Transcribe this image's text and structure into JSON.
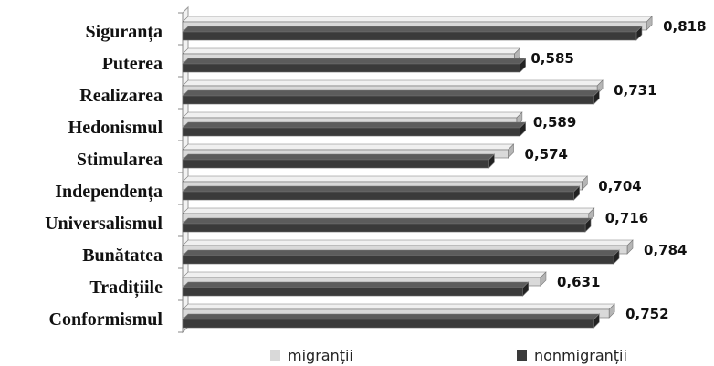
{
  "chart_data": {
    "type": "bar",
    "orientation": "horizontal",
    "style": "3d",
    "categories": [
      "Siguranța",
      "Puterea",
      "Realizarea",
      "Hedonismul",
      "Stimularea",
      "Independența",
      "Universalismul",
      "Bunătatea",
      "Tradițiile",
      "Conformismul"
    ],
    "series": [
      {
        "name": "migranții",
        "values": [
          0.818,
          0.585,
          0.731,
          0.589,
          0.574,
          0.704,
          0.716,
          0.784,
          0.631,
          0.752
        ],
        "color": "#d9d9d9"
      },
      {
        "name": "nonmigranții",
        "values": [
          0.8,
          0.595,
          0.725,
          0.595,
          0.54,
          0.69,
          0.71,
          0.76,
          0.6,
          0.725
        ],
        "color": "#3a3a3a"
      }
    ],
    "data_labels": [
      "0,818",
      "0,585",
      "0,731",
      "0,589",
      "0,574",
      "0,704",
      "0,716",
      "0,784",
      "0,631",
      "0,752"
    ],
    "xlim": [
      0,
      0.85
    ],
    "legend_position": "bottom",
    "grid": false,
    "title": "",
    "xlabel": "",
    "ylabel": ""
  }
}
